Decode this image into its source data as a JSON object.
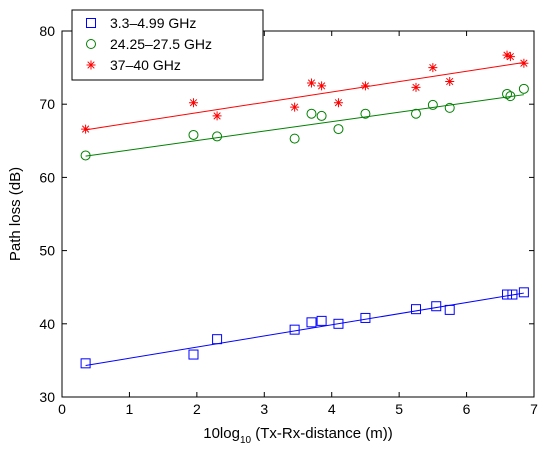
{
  "chart_data": {
    "type": "scatter",
    "title": "",
    "xlabel": {
      "main": "10log",
      "sub": "10",
      "rest": " (Tx-Rx-distance (m))"
    },
    "ylabel": "Path loss (dB)",
    "xlim": [
      0,
      7
    ],
    "ylim": [
      30,
      80
    ],
    "xticks": [
      0,
      1,
      2,
      3,
      4,
      5,
      6,
      7
    ],
    "yticks": [
      30,
      40,
      50,
      60,
      70,
      80
    ],
    "grid": false,
    "legend_position": "top-left",
    "series": [
      {
        "name": "3.3–4.99 GHz",
        "marker": "square",
        "color": "#0000ff",
        "points": [
          [
            0.35,
            34.6
          ],
          [
            1.95,
            35.8
          ],
          [
            2.3,
            37.9
          ],
          [
            3.45,
            39.2
          ],
          [
            3.7,
            40.2
          ],
          [
            3.85,
            40.4
          ],
          [
            4.1,
            40.0
          ],
          [
            4.5,
            40.8
          ],
          [
            5.25,
            42.0
          ],
          [
            5.55,
            42.4
          ],
          [
            5.75,
            41.9
          ],
          [
            6.6,
            44.0
          ],
          [
            6.68,
            44.0
          ],
          [
            6.85,
            44.3
          ]
        ],
        "fit": [
          [
            0.35,
            34.3
          ],
          [
            6.85,
            44.2
          ]
        ]
      },
      {
        "name": "24.25–27.5 GHz",
        "marker": "circle",
        "color": "#008000",
        "points": [
          [
            0.35,
            63.0
          ],
          [
            1.95,
            65.8
          ],
          [
            2.3,
            65.6
          ],
          [
            3.45,
            65.3
          ],
          [
            3.7,
            68.7
          ],
          [
            3.85,
            68.4
          ],
          [
            4.1,
            66.6
          ],
          [
            4.5,
            68.7
          ],
          [
            5.25,
            68.7
          ],
          [
            5.5,
            69.9
          ],
          [
            5.75,
            69.5
          ],
          [
            6.6,
            71.4
          ],
          [
            6.65,
            71.1
          ],
          [
            6.85,
            72.1
          ]
        ],
        "fit": [
          [
            0.35,
            62.9
          ],
          [
            6.85,
            71.3
          ]
        ]
      },
      {
        "name": "37–40 GHz",
        "marker": "star",
        "color": "#ff0000",
        "points": [
          [
            0.35,
            66.6
          ],
          [
            1.95,
            70.2
          ],
          [
            2.3,
            68.4
          ],
          [
            3.45,
            69.6
          ],
          [
            3.7,
            72.9
          ],
          [
            3.85,
            72.5
          ],
          [
            4.1,
            70.2
          ],
          [
            4.5,
            72.5
          ],
          [
            5.25,
            72.3
          ],
          [
            5.5,
            75.0
          ],
          [
            5.75,
            73.1
          ],
          [
            6.6,
            76.7
          ],
          [
            6.65,
            76.5
          ],
          [
            6.85,
            75.6
          ]
        ],
        "fit": [
          [
            0.35,
            66.5
          ],
          [
            6.85,
            75.7
          ]
        ]
      }
    ]
  }
}
